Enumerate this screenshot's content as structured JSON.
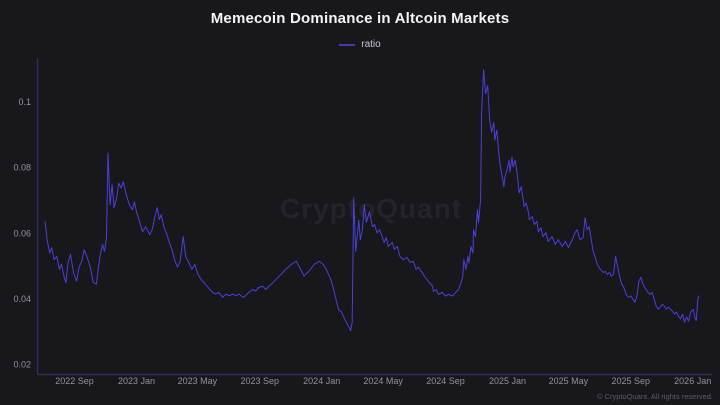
{
  "header": {
    "title": "Memecoin Dominance in Altcoin Markets"
  },
  "legend": {
    "label": "ratio"
  },
  "watermark": {
    "text": "CryptoQuant"
  },
  "footer": {
    "copyright": "© CryptoQuant. All rights reserved."
  },
  "colors": {
    "background": "#17171c",
    "line": "#4c40d8",
    "legend_swatch": "#453aa6",
    "axis_spine": "#312e55",
    "tick_text": "#92929a",
    "title_text": "#f4f4f6",
    "copyright_text": "#5d5d66"
  },
  "chart_data": {
    "type": "line",
    "title": "Memecoin Dominance in Altcoin Markets",
    "series_name": "ratio",
    "xlabel": "",
    "ylabel": "",
    "grid": false,
    "legend_position": "top-center",
    "x_domain": [
      "2022-06-20",
      "2026-02-08"
    ],
    "ylim": [
      0.017,
      0.1134
    ],
    "y_ticks": [
      0.02,
      0.04,
      0.06,
      0.08,
      0.1
    ],
    "x_ticks": [
      "2022 Sep",
      "2023 Jan",
      "2023 May",
      "2023 Sep",
      "2024 Jan",
      "2024 May",
      "2024 Sep",
      "2025 Jan",
      "2025 May",
      "2025 Sep",
      "2026 Jan"
    ],
    "x_tick_dates": [
      "2022-09-01",
      "2023-01-01",
      "2023-05-01",
      "2023-09-01",
      "2024-01-01",
      "2024-05-01",
      "2024-09-01",
      "2025-01-01",
      "2025-05-01",
      "2025-09-01",
      "2026-01-01"
    ],
    "points": [
      [
        "2022-07-05",
        0.0635
      ],
      [
        "2022-07-09",
        0.058
      ],
      [
        "2022-07-14",
        0.054
      ],
      [
        "2022-07-18",
        0.0556
      ],
      [
        "2022-07-23",
        0.052
      ],
      [
        "2022-07-28",
        0.053
      ],
      [
        "2022-08-02",
        0.049
      ],
      [
        "2022-08-06",
        0.0506
      ],
      [
        "2022-08-11",
        0.047
      ],
      [
        "2022-08-15",
        0.045
      ],
      [
        "2022-08-19",
        0.051
      ],
      [
        "2022-08-24",
        0.0536
      ],
      [
        "2022-08-30",
        0.048
      ],
      [
        "2022-09-05",
        0.0455
      ],
      [
        "2022-09-10",
        0.0497
      ],
      [
        "2022-09-15",
        0.0515
      ],
      [
        "2022-09-20",
        0.055
      ],
      [
        "2022-09-26",
        0.0526
      ],
      [
        "2022-10-02",
        0.0497
      ],
      [
        "2022-10-08",
        0.045
      ],
      [
        "2022-10-14",
        0.0445
      ],
      [
        "2022-10-18",
        0.0497
      ],
      [
        "2022-10-22",
        0.0536
      ],
      [
        "2022-10-26",
        0.0566
      ],
      [
        "2022-10-30",
        0.0545
      ],
      [
        "2022-11-03",
        0.0587
      ],
      [
        "2022-11-06",
        0.0845
      ],
      [
        "2022-11-10",
        0.0687
      ],
      [
        "2022-11-14",
        0.0748
      ],
      [
        "2022-11-18",
        0.0678
      ],
      [
        "2022-11-23",
        0.0708
      ],
      [
        "2022-11-27",
        0.0753
      ],
      [
        "2022-12-02",
        0.0738
      ],
      [
        "2022-12-06",
        0.0757
      ],
      [
        "2022-12-12",
        0.0717
      ],
      [
        "2022-12-18",
        0.0687
      ],
      [
        "2022-12-24",
        0.0672
      ],
      [
        "2022-12-28",
        0.0696
      ],
      [
        "2023-01-01",
        0.0666
      ],
      [
        "2023-01-07",
        0.0636
      ],
      [
        "2023-01-13",
        0.0605
      ],
      [
        "2023-01-19",
        0.062
      ],
      [
        "2023-01-27",
        0.0596
      ],
      [
        "2023-02-01",
        0.0611
      ],
      [
        "2023-02-06",
        0.0648
      ],
      [
        "2023-02-11",
        0.0678
      ],
      [
        "2023-02-15",
        0.0642
      ],
      [
        "2023-02-19",
        0.0657
      ],
      [
        "2023-02-24",
        0.062
      ],
      [
        "2023-03-01",
        0.06
      ],
      [
        "2023-03-06",
        0.0576
      ],
      [
        "2023-03-12",
        0.055
      ],
      [
        "2023-03-18",
        0.0515
      ],
      [
        "2023-03-23",
        0.0497
      ],
      [
        "2023-03-28",
        0.0515
      ],
      [
        "2023-04-03",
        0.059
      ],
      [
        "2023-04-08",
        0.053
      ],
      [
        "2023-04-14",
        0.0511
      ],
      [
        "2023-04-20",
        0.049
      ],
      [
        "2023-04-26",
        0.0505
      ],
      [
        "2023-05-02",
        0.0475
      ],
      [
        "2023-05-08",
        0.046
      ],
      [
        "2023-05-14",
        0.045
      ],
      [
        "2023-05-22",
        0.0436
      ],
      [
        "2023-05-31",
        0.042
      ],
      [
        "2023-06-06",
        0.0415
      ],
      [
        "2023-06-12",
        0.042
      ],
      [
        "2023-06-20",
        0.0405
      ],
      [
        "2023-06-26",
        0.0415
      ],
      [
        "2023-07-02",
        0.041
      ],
      [
        "2023-07-10",
        0.0415
      ],
      [
        "2023-07-16",
        0.041
      ],
      [
        "2023-07-22",
        0.0415
      ],
      [
        "2023-07-30",
        0.0405
      ],
      [
        "2023-08-04",
        0.041
      ],
      [
        "2023-08-10",
        0.042
      ],
      [
        "2023-08-18",
        0.0429
      ],
      [
        "2023-08-24",
        0.0424
      ],
      [
        "2023-08-30",
        0.0435
      ],
      [
        "2023-09-07",
        0.0439
      ],
      [
        "2023-09-13",
        0.0429
      ],
      [
        "2023-09-19",
        0.0439
      ],
      [
        "2023-09-27",
        0.045
      ],
      [
        "2023-10-03",
        0.046
      ],
      [
        "2023-10-13",
        0.0475
      ],
      [
        "2023-10-22",
        0.049
      ],
      [
        "2023-11-02",
        0.0505
      ],
      [
        "2023-11-12",
        0.0515
      ],
      [
        "2023-11-18",
        0.0497
      ],
      [
        "2023-11-27",
        0.047
      ],
      [
        "2023-12-07",
        0.0485
      ],
      [
        "2023-12-17",
        0.0505
      ],
      [
        "2023-12-27",
        0.0515
      ],
      [
        "2024-01-04",
        0.0505
      ],
      [
        "2024-01-10",
        0.049
      ],
      [
        "2024-01-20",
        0.0455
      ],
      [
        "2024-01-25",
        0.0425
      ],
      [
        "2024-02-03",
        0.0368
      ],
      [
        "2024-02-09",
        0.036
      ],
      [
        "2024-02-15",
        0.0339
      ],
      [
        "2024-02-23",
        0.0317
      ],
      [
        "2024-02-27",
        0.0303
      ],
      [
        "2024-03-01",
        0.033
      ],
      [
        "2024-03-04",
        0.0708
      ],
      [
        "2024-03-08",
        0.0545
      ],
      [
        "2024-03-14",
        0.064
      ],
      [
        "2024-03-17",
        0.058
      ],
      [
        "2024-03-21",
        0.061
      ],
      [
        "2024-03-25",
        0.0687
      ],
      [
        "2024-03-29",
        0.0633
      ],
      [
        "2024-04-04",
        0.0666
      ],
      [
        "2024-04-10",
        0.062
      ],
      [
        "2024-04-14",
        0.0627
      ],
      [
        "2024-04-19",
        0.0602
      ],
      [
        "2024-04-24",
        0.0611
      ],
      [
        "2024-04-29",
        0.059
      ],
      [
        "2024-05-03",
        0.0572
      ],
      [
        "2024-05-07",
        0.0587
      ],
      [
        "2024-05-11",
        0.056
      ],
      [
        "2024-05-19",
        0.0572
      ],
      [
        "2024-05-23",
        0.0551
      ],
      [
        "2024-05-29",
        0.056
      ],
      [
        "2024-06-03",
        0.053
      ],
      [
        "2024-06-10",
        0.052
      ],
      [
        "2024-06-17",
        0.0526
      ],
      [
        "2024-06-23",
        0.0511
      ],
      [
        "2024-06-29",
        0.0515
      ],
      [
        "2024-07-05",
        0.049
      ],
      [
        "2024-07-09",
        0.0497
      ],
      [
        "2024-07-17",
        0.048
      ],
      [
        "2024-07-23",
        0.0466
      ],
      [
        "2024-07-29",
        0.0454
      ],
      [
        "2024-08-06",
        0.0439
      ],
      [
        "2024-08-08",
        0.0423
      ],
      [
        "2024-08-14",
        0.0429
      ],
      [
        "2024-08-18",
        0.0414
      ],
      [
        "2024-08-25",
        0.042
      ],
      [
        "2024-09-01",
        0.0409
      ],
      [
        "2024-09-07",
        0.0414
      ],
      [
        "2024-09-15",
        0.0409
      ],
      [
        "2024-09-21",
        0.042
      ],
      [
        "2024-09-27",
        0.0429
      ],
      [
        "2024-10-01",
        0.0448
      ],
      [
        "2024-10-05",
        0.0469
      ],
      [
        "2024-10-07",
        0.052
      ],
      [
        "2024-10-11",
        0.049
      ],
      [
        "2024-10-15",
        0.053
      ],
      [
        "2024-10-17",
        0.051
      ],
      [
        "2024-10-21",
        0.056
      ],
      [
        "2024-10-25",
        0.054
      ],
      [
        "2024-10-26",
        0.061
      ],
      [
        "2024-10-30",
        0.059
      ],
      [
        "2024-11-03",
        0.0672
      ],
      [
        "2024-11-05",
        0.0633
      ],
      [
        "2024-11-09",
        0.0702
      ],
      [
        "2024-11-11",
        0.097
      ],
      [
        "2024-11-15",
        0.1098
      ],
      [
        "2024-11-19",
        0.1026
      ],
      [
        "2024-11-23",
        0.105
      ],
      [
        "2024-11-27",
        0.0945
      ],
      [
        "2024-12-01",
        0.0908
      ],
      [
        "2024-12-05",
        0.0938
      ],
      [
        "2024-12-07",
        0.0884
      ],
      [
        "2024-12-11",
        0.0914
      ],
      [
        "2024-12-15",
        0.0845
      ],
      [
        "2024-12-17",
        0.0814
      ],
      [
        "2024-12-21",
        0.0778
      ],
      [
        "2024-12-25",
        0.0742
      ],
      [
        "2024-12-27",
        0.0772
      ],
      [
        "2024-12-31",
        0.0793
      ],
      [
        "2025-01-04",
        0.0823
      ],
      [
        "2025-01-06",
        0.0787
      ],
      [
        "2025-01-10",
        0.0832
      ],
      [
        "2025-01-12",
        0.0802
      ],
      [
        "2025-01-16",
        0.0823
      ],
      [
        "2025-01-20",
        0.0784
      ],
      [
        "2025-01-24",
        0.0723
      ],
      [
        "2025-01-28",
        0.0742
      ],
      [
        "2025-02-01",
        0.0702
      ],
      [
        "2025-02-03",
        0.0681
      ],
      [
        "2025-02-07",
        0.0693
      ],
      [
        "2025-02-11",
        0.0666
      ],
      [
        "2025-02-13",
        0.0642
      ],
      [
        "2025-02-19",
        0.0651
      ],
      [
        "2025-02-23",
        0.0627
      ],
      [
        "2025-02-28",
        0.0636
      ],
      [
        "2025-03-03",
        0.0605
      ],
      [
        "2025-03-08",
        0.0617
      ],
      [
        "2025-03-12",
        0.059
      ],
      [
        "2025-03-18",
        0.0602
      ],
      [
        "2025-03-22",
        0.0575
      ],
      [
        "2025-03-30",
        0.059
      ],
      [
        "2025-04-05",
        0.0566
      ],
      [
        "2025-04-11",
        0.0581
      ],
      [
        "2025-04-19",
        0.056
      ],
      [
        "2025-04-25",
        0.0575
      ],
      [
        "2025-05-01",
        0.0557
      ],
      [
        "2025-05-09",
        0.0581
      ],
      [
        "2025-05-14",
        0.0602
      ],
      [
        "2025-05-18",
        0.0611
      ],
      [
        "2025-05-24",
        0.0581
      ],
      [
        "2025-05-30",
        0.0587
      ],
      [
        "2025-06-03",
        0.0648
      ],
      [
        "2025-06-07",
        0.0611
      ],
      [
        "2025-06-11",
        0.062
      ],
      [
        "2025-06-15",
        0.0581
      ],
      [
        "2025-06-19",
        0.0545
      ],
      [
        "2025-06-23",
        0.0526
      ],
      [
        "2025-06-27",
        0.0505
      ],
      [
        "2025-07-03",
        0.049
      ],
      [
        "2025-07-09",
        0.0481
      ],
      [
        "2025-07-13",
        0.0484
      ],
      [
        "2025-07-17",
        0.0475
      ],
      [
        "2025-07-21",
        0.0481
      ],
      [
        "2025-07-25",
        0.0469
      ],
      [
        "2025-07-29",
        0.0475
      ],
      [
        "2025-08-02",
        0.053
      ],
      [
        "2025-08-06",
        0.0499
      ],
      [
        "2025-08-10",
        0.0469
      ],
      [
        "2025-08-14",
        0.0445
      ],
      [
        "2025-08-18",
        0.0436
      ],
      [
        "2025-08-23",
        0.0414
      ],
      [
        "2025-08-27",
        0.0405
      ],
      [
        "2025-09-01",
        0.0409
      ],
      [
        "2025-09-05",
        0.04
      ],
      [
        "2025-09-09",
        0.039
      ],
      [
        "2025-09-13",
        0.0409
      ],
      [
        "2025-09-17",
        0.0454
      ],
      [
        "2025-09-21",
        0.0466
      ],
      [
        "2025-09-25",
        0.0445
      ],
      [
        "2025-10-01",
        0.0429
      ],
      [
        "2025-10-05",
        0.042
      ],
      [
        "2025-10-09",
        0.0414
      ],
      [
        "2025-10-13",
        0.042
      ],
      [
        "2025-10-17",
        0.04
      ],
      [
        "2025-10-21",
        0.0378
      ],
      [
        "2025-10-25",
        0.0369
      ],
      [
        "2025-10-29",
        0.0375
      ],
      [
        "2025-11-02",
        0.0384
      ],
      [
        "2025-11-06",
        0.0378
      ],
      [
        "2025-11-10",
        0.0369
      ],
      [
        "2025-11-14",
        0.0375
      ],
      [
        "2025-11-18",
        0.0369
      ],
      [
        "2025-11-22",
        0.0363
      ],
      [
        "2025-11-26",
        0.0354
      ],
      [
        "2025-11-30",
        0.036
      ],
      [
        "2025-12-04",
        0.0348
      ],
      [
        "2025-12-08",
        0.0339
      ],
      [
        "2025-12-12",
        0.0354
      ],
      [
        "2025-12-16",
        0.0329
      ],
      [
        "2025-12-20",
        0.0345
      ],
      [
        "2025-12-24",
        0.0333
      ],
      [
        "2025-12-28",
        0.036
      ],
      [
        "2026-01-02",
        0.0369
      ],
      [
        "2026-01-06",
        0.034
      ],
      [
        "2026-01-08",
        0.0335
      ],
      [
        "2026-01-11",
        0.0398
      ],
      [
        "2026-01-13",
        0.0409
      ]
    ]
  }
}
